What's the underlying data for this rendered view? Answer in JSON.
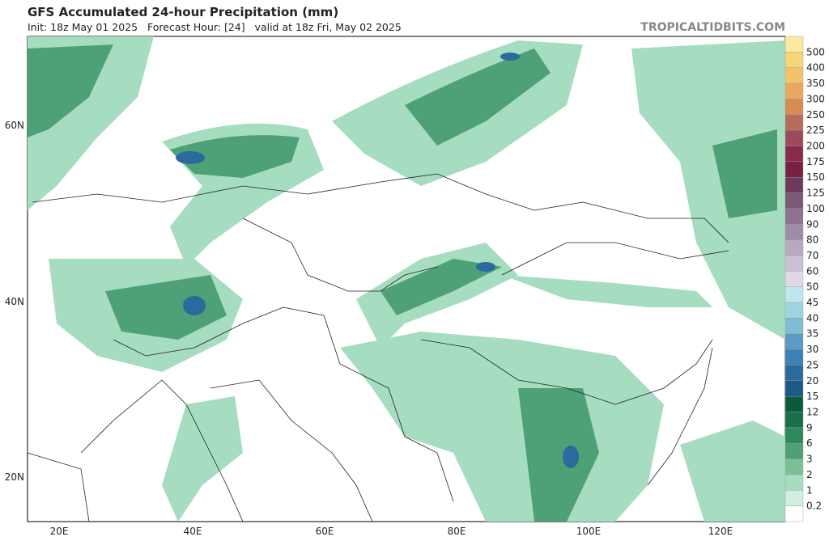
{
  "header": {
    "title": "GFS Accumulated 24-hour Precipitation (mm)",
    "subtitle": "Init: 18z May 01 2025   Forecast Hour: [24]   valid at 18z Fri, May 02 2025",
    "brand": "TROPICALTIDBITS.COM"
  },
  "map": {
    "lat_labels": [
      "60N",
      "40N",
      "20N"
    ],
    "lon_labels": [
      "20E",
      "40E",
      "60E",
      "80E",
      "100E",
      "120E"
    ]
  },
  "colorbar": {
    "labels": [
      "500",
      "400",
      "350",
      "300",
      "250",
      "225",
      "200",
      "175",
      "150",
      "125",
      "100",
      "90",
      "80",
      "70",
      "60",
      "50",
      "45",
      "40",
      "35",
      "30",
      "25",
      "20",
      "15",
      "12",
      "9",
      "6",
      "3",
      "2",
      "1",
      "0.2"
    ],
    "colors": [
      "#fbe9a0",
      "#f7d679",
      "#f2c46a",
      "#eaa860",
      "#d98a55",
      "#b86b5a",
      "#9e4a5a",
      "#8a2a4a",
      "#7a2045",
      "#6e3a5a",
      "#7a5a75",
      "#8e7390",
      "#a08ca8",
      "#b8a8c0",
      "#ccc0d4",
      "#e0d8e6",
      "#bfe8ec",
      "#a0d4e0",
      "#80bcd4",
      "#5c9cc4",
      "#3c82b4",
      "#2a6a9c",
      "#1a5a84",
      "#0c5a3c",
      "#1a6e48",
      "#2e8a5c",
      "#4ea076",
      "#7cc09a",
      "#a6dcc0",
      "#d0efe0",
      "#ffffff"
    ]
  }
}
